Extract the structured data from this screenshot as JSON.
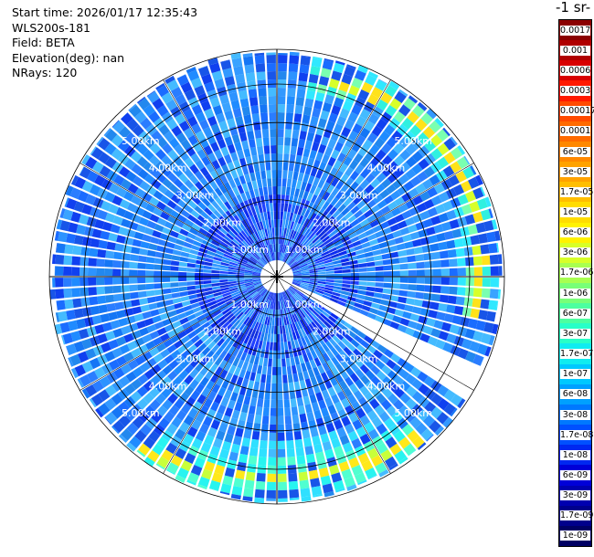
{
  "info": {
    "start_time": "Start time: 2026/01/17 12:35:43",
    "instrument": "WLS200s-181",
    "field": "Field: BETA",
    "elevation": "Elevation(deg): nan",
    "nrays": "NRays: 120"
  },
  "units_title": "-1 sr-",
  "rings": {
    "upper": [
      "1.00km",
      "2.00km",
      "3.00km",
      "4.00km",
      "5.00km"
    ],
    "lower": [
      "1.00km",
      "2.00km",
      "3.00km",
      "4.00km",
      "5.00km"
    ]
  },
  "colorbar": {
    "labels": [
      "0.0017",
      "0.001",
      "0.0006",
      "0.0003",
      "0.00017",
      "0.0001",
      "6e-05",
      "3e-05",
      "1.7e-05",
      "1e-05",
      "6e-06",
      "3e-06",
      "1.7e-06",
      "1e-06",
      "6e-07",
      "3e-07",
      "1.7e-07",
      "1e-07",
      "6e-08",
      "3e-08",
      "1.7e-08",
      "1e-08",
      "6e-09",
      "3e-09",
      "1.7e-09",
      "1e-09"
    ],
    "colors": [
      "#8b0000",
      "#b00000",
      "#d80000",
      "#ff1a00",
      "#ff4a00",
      "#ff6a00",
      "#ff8800",
      "#ffa200",
      "#ffbe00",
      "#ffdc00",
      "#fff200",
      "#d8ff28",
      "#a8ff50",
      "#78ff78",
      "#4cffa0",
      "#28ffc8",
      "#10ecf0",
      "#00c8ff",
      "#00a0ff",
      "#0078ff",
      "#0050ff",
      "#0028f0",
      "#0000d8",
      "#0000b0",
      "#00008c",
      "#000064"
    ]
  },
  "chart_data": {
    "type": "heatmap",
    "field": "BETA",
    "nrays": 120,
    "range_rings_km": [
      1,
      2,
      3,
      4,
      5
    ],
    "max_range_km": 5.9,
    "colorscale": "log, 1e-09 to 0.0017",
    "features": [
      {
        "description": "high backscatter arc",
        "range_km": [
          5.0,
          5.7
        ],
        "azimuth_deg": [
          10,
          100
        ],
        "level": "1.7e-05"
      },
      {
        "description": "high backscatter arc",
        "range_km": [
          5.0,
          5.9
        ],
        "azimuth_deg": [
          140,
          215
        ],
        "level": "1.7e-05"
      },
      {
        "description": "no data sector",
        "azimuth_deg": [
          114,
          122
        ]
      }
    ]
  }
}
